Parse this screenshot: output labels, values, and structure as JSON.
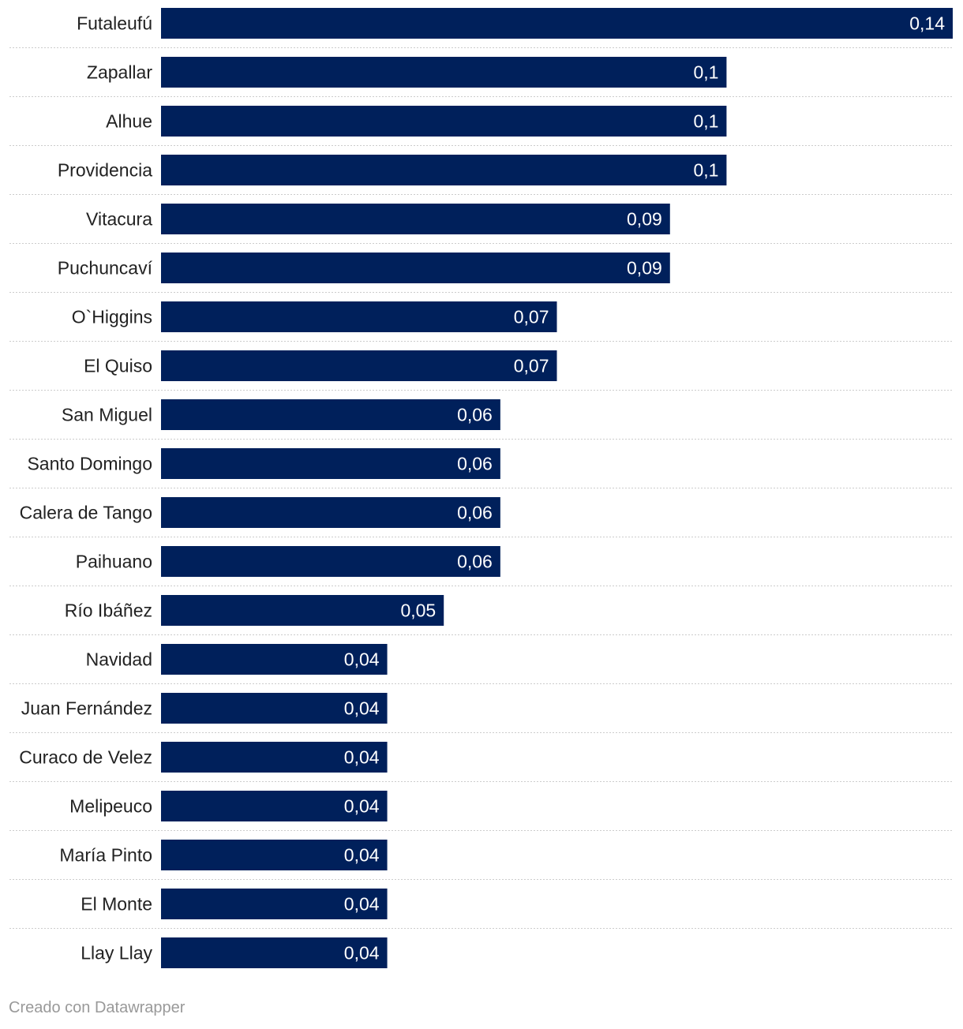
{
  "chart_data": {
    "type": "bar",
    "orientation": "horizontal",
    "decimal_separator": ",",
    "categories": [
      "Futaleufú",
      "Zapallar",
      "Alhue",
      "Providencia",
      "Vitacura",
      "Puchuncaví",
      "O`Higgins",
      "El Quiso",
      "San Miguel",
      "Santo Domingo",
      "Calera de Tango",
      "Paihuano",
      "Río Ibáñez",
      "Navidad",
      "Juan Fernández",
      "Curaco de Velez",
      "Melipeuco",
      "María Pinto",
      "El Monte",
      "Llay Llay"
    ],
    "values": [
      0.14,
      0.1,
      0.1,
      0.1,
      0.09,
      0.09,
      0.07,
      0.07,
      0.06,
      0.06,
      0.06,
      0.06,
      0.05,
      0.04,
      0.04,
      0.04,
      0.04,
      0.04,
      0.04,
      0.04
    ],
    "value_labels": [
      "0,14",
      "0,1",
      "0,1",
      "0,1",
      "0,09",
      "0,09",
      "0,07",
      "0,07",
      "0,06",
      "0,06",
      "0,06",
      "0,06",
      "0,05",
      "0,04",
      "0,04",
      "0,04",
      "0,04",
      "0,04",
      "0,04",
      "0,04"
    ],
    "xlim": [
      0,
      0.14
    ],
    "bar_color": "#00205b",
    "label_color": "#ffffff",
    "grid": false
  },
  "footer": {
    "credit": "Creado con Datawrapper"
  }
}
